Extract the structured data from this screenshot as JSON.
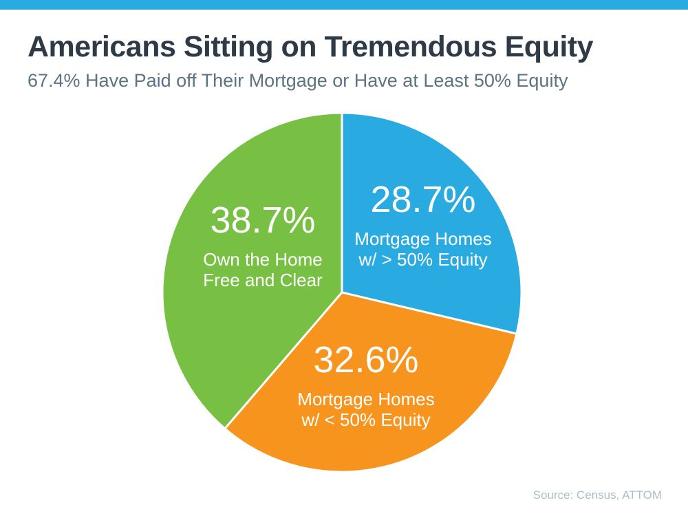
{
  "top_bar": {
    "color": "#29ABE2"
  },
  "header": {
    "title": "Americans Sitting on Tremendous Equity",
    "subtitle": "67.4% Have Paid off Their Mortgage or Have at Least 50% Equity"
  },
  "chart_data": {
    "type": "pie",
    "title": "Americans Sitting on Tremendous Equity",
    "subtitle": "67.4% Have Paid off Their Mortgage or Have at Least 50% Equity",
    "start_angle": "top",
    "direction": "clockwise",
    "legend": "none (labels inside slices)",
    "slices": [
      {
        "label": "Mortgage Homes w/ > 50% Equity",
        "value": 28.7,
        "pct_label": "28.7%",
        "label_line1": "Mortgage Homes",
        "label_line2": "w/ > 50% Equity",
        "color": "#29ABE2"
      },
      {
        "label": "Mortgage Homes w/ < 50% Equity",
        "value": 32.6,
        "pct_label": "32.6%",
        "label_line1": "Mortgage Homes",
        "label_line2": "w/ < 50% Equity",
        "color": "#F7941E"
      },
      {
        "label": "Own the Home Free and Clear",
        "value": 38.7,
        "pct_label": "38.7%",
        "label_line1": "Own the Home",
        "label_line2": "Free and Clear",
        "color": "#77C044"
      }
    ],
    "separator_color": "#FFFFFF"
  },
  "footer": {
    "source": "Source: Census, ATTOM"
  }
}
